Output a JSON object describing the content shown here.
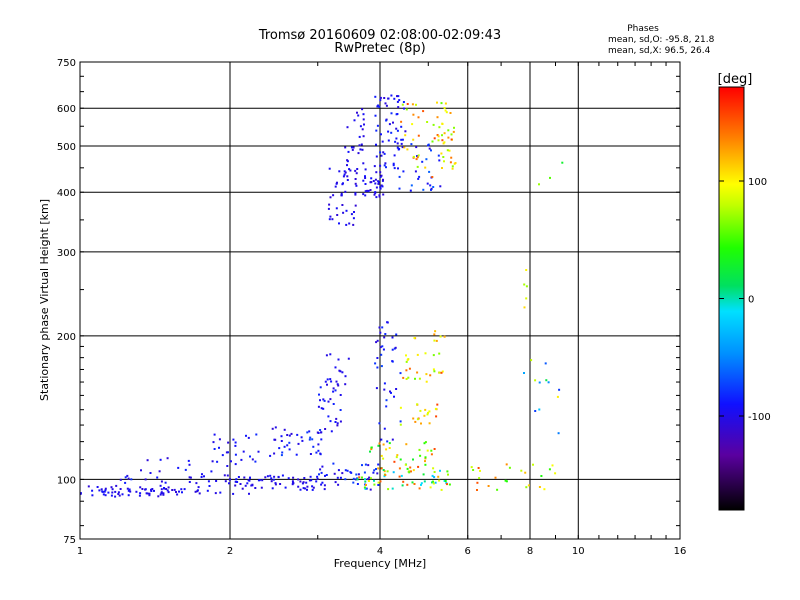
{
  "chart_data": {
    "type": "scatter",
    "title": "Tromsø 20160609 02:08:00-02:09:43",
    "subtitle": "RwPretec (8p)",
    "xlabel": "Frequency [MHz]",
    "ylabel": "Stationary phase Virtual Height [km]",
    "x_scale": "log",
    "y_scale": "log",
    "xlim": [
      1,
      16
    ],
    "ylim": [
      75,
      750
    ],
    "x_ticks": [
      1,
      2,
      4,
      6,
      8,
      10,
      16
    ],
    "x_tick_labels": [
      "1",
      "2",
      "4",
      "6",
      "8",
      "10",
      "16"
    ],
    "y_ticks": [
      75,
      100,
      200,
      300,
      400,
      500,
      600,
      750
    ],
    "y_tick_labels": [
      "75",
      "100",
      "200",
      "300",
      "400",
      "500",
      "600",
      "750"
    ],
    "grid": true,
    "colorbar": {
      "label": "[deg]",
      "range": [
        -180,
        180
      ],
      "ticks": [
        100,
        0,
        -100
      ],
      "tick_labels": [
        "100",
        "0",
        "-100"
      ]
    },
    "stats": {
      "heading": "Phases",
      "line_o": "mean, sd,O: -95.8, 21.8",
      "line_x": "mean, sd,X:  96.5, 26.4"
    },
    "clusters": [
      {
        "x": [
          1.0,
          1.6
        ],
        "y": [
          92,
          97
        ],
        "phase": [
          -110,
          -90
        ],
        "n": 70
      },
      {
        "x": [
          1.6,
          2.2
        ],
        "y": [
          93,
          103
        ],
        "phase": [
          -110,
          -90
        ],
        "n": 40
      },
      {
        "x": [
          1.2,
          1.9
        ],
        "y": [
          98,
          112
        ],
        "phase": [
          -110,
          -80
        ],
        "n": 25
      },
      {
        "x": [
          1.85,
          2.3
        ],
        "y": [
          105,
          125
        ],
        "phase": [
          -110,
          -80
        ],
        "n": 25
      },
      {
        "x": [
          2.2,
          3.0
        ],
        "y": [
          95,
          102
        ],
        "phase": [
          -110,
          -90
        ],
        "n": 50
      },
      {
        "x": [
          2.4,
          3.1
        ],
        "y": [
          112,
          130
        ],
        "phase": [
          -110,
          -70
        ],
        "n": 40
      },
      {
        "x": [
          3.0,
          3.4
        ],
        "y": [
          125,
          165
        ],
        "phase": [
          -110,
          -80
        ],
        "n": 30
      },
      {
        "x": [
          3.0,
          4.0
        ],
        "y": [
          95,
          108
        ],
        "phase": [
          -110,
          -70
        ],
        "n": 45
      },
      {
        "x": [
          3.1,
          3.5
        ],
        "y": [
          150,
          185
        ],
        "phase": [
          -110,
          -90
        ],
        "n": 15
      },
      {
        "x": [
          3.6,
          5.6
        ],
        "y": [
          95,
          105
        ],
        "phase": [
          -30,
          160
        ],
        "n": 60
      },
      {
        "x": [
          3.8,
          5.2
        ],
        "y": [
          105,
          120
        ],
        "phase": [
          20,
          160
        ],
        "n": 40
      },
      {
        "x": [
          3.9,
          4.4
        ],
        "y": [
          120,
          215
        ],
        "phase": [
          -110,
          -70
        ],
        "n": 40
      },
      {
        "x": [
          4.4,
          5.4
        ],
        "y": [
          130,
          145
        ],
        "phase": [
          60,
          160
        ],
        "n": 20
      },
      {
        "x": [
          4.4,
          5.4
        ],
        "y": [
          160,
          185
        ],
        "phase": [
          60,
          160
        ],
        "n": 25
      },
      {
        "x": [
          4.6,
          5.4
        ],
        "y": [
          195,
          205
        ],
        "phase": [
          80,
          140
        ],
        "n": 8
      },
      {
        "x": [
          6.0,
          9.0
        ],
        "y": [
          95,
          108
        ],
        "phase": [
          40,
          160
        ],
        "n": 25
      },
      {
        "x": [
          7.6,
          9.2
        ],
        "y": [
          120,
          180
        ],
        "phase": [
          -110,
          120
        ],
        "n": 12
      },
      {
        "x": [
          3.15,
          3.6
        ],
        "y": [
          340,
          450
        ],
        "phase": [
          -110,
          -90
        ],
        "n": 40
      },
      {
        "x": [
          3.4,
          3.75
        ],
        "y": [
          410,
          600
        ],
        "phase": [
          -110,
          -90
        ],
        "n": 35
      },
      {
        "x": [
          3.7,
          4.1
        ],
        "y": [
          390,
          440
        ],
        "phase": [
          -110,
          -90
        ],
        "n": 35
      },
      {
        "x": [
          3.9,
          4.5
        ],
        "y": [
          440,
          640
        ],
        "phase": [
          -110,
          -80
        ],
        "n": 65
      },
      {
        "x": [
          4.3,
          5.3
        ],
        "y": [
          400,
          520
        ],
        "phase": [
          -110,
          -60
        ],
        "n": 30
      },
      {
        "x": [
          4.4,
          5.6
        ],
        "y": [
          430,
          620
        ],
        "phase": [
          60,
          160
        ],
        "n": 45
      },
      {
        "x": [
          5.2,
          5.7
        ],
        "y": [
          440,
          560
        ],
        "phase": [
          60,
          140
        ],
        "n": 20
      },
      {
        "x": [
          7.7,
          7.9
        ],
        "y": [
          200,
          290
        ],
        "phase": [
          70,
          120
        ],
        "n": 5
      },
      {
        "x": [
          7.7,
          9.5
        ],
        "y": [
          390,
          470
        ],
        "phase": [
          20,
          160
        ],
        "n": 3
      }
    ]
  }
}
